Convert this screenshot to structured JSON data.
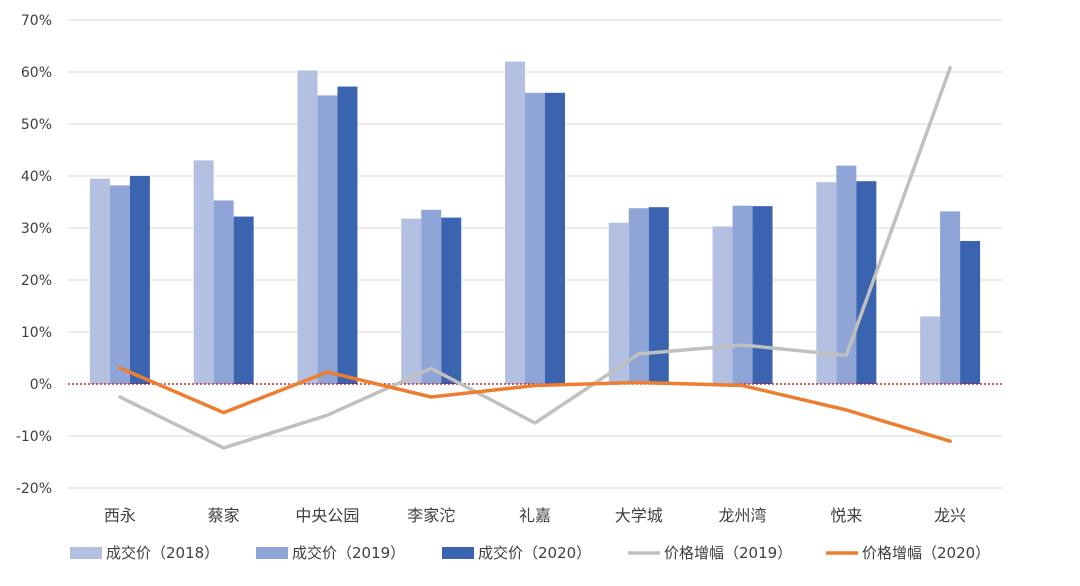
{
  "chart_data": {
    "type": "bar",
    "title": "",
    "xlabel": "",
    "ylabel": "",
    "ylim": [
      -20,
      70
    ],
    "y_ticks": [
      -20,
      -10,
      0,
      10,
      20,
      30,
      40,
      50,
      60,
      70
    ],
    "y_tick_labels": [
      "-20%",
      "-10%",
      "0%",
      "10%",
      "20%",
      "30%",
      "40%",
      "50%",
      "60%",
      "70%"
    ],
    "categories": [
      "西永",
      "蔡家",
      "中央公园",
      "李家沱",
      "礼嘉",
      "大学城",
      "龙州湾",
      "悦来",
      "龙兴"
    ],
    "series": [
      {
        "name": "成交价（2018）",
        "kind": "bar",
        "color": "#b4c0e2",
        "values": [
          39.5,
          43.0,
          60.3,
          31.8,
          62.0,
          31.0,
          30.3,
          38.8,
          13.0
        ]
      },
      {
        "name": "成交价（2019）",
        "kind": "bar",
        "color": "#8fa5d8",
        "values": [
          38.2,
          35.3,
          55.5,
          33.5,
          56.0,
          33.8,
          34.3,
          42.0,
          33.2
        ]
      },
      {
        "name": "成交价（2020）",
        "kind": "bar",
        "color": "#3a63b0",
        "values": [
          40.0,
          32.2,
          57.2,
          32.0,
          56.0,
          34.0,
          34.2,
          39.0,
          27.5
        ]
      },
      {
        "name": "价格增幅（2019）",
        "kind": "line",
        "color": "#c0c0c0",
        "values": [
          -2.5,
          -12.3,
          -6.0,
          3.0,
          -7.5,
          5.8,
          7.5,
          5.5,
          60.8
        ]
      },
      {
        "name": "价格增幅（2020）",
        "kind": "line",
        "color": "#ed7d31",
        "values": [
          3.1,
          -5.5,
          2.3,
          -2.5,
          -0.3,
          0.3,
          -0.3,
          -5.0,
          -11.0
        ]
      }
    ],
    "reference_line": {
      "value": 0,
      "color": "#c00000",
      "style": "dotted"
    },
    "grid": true,
    "legend_position": "bottom"
  }
}
